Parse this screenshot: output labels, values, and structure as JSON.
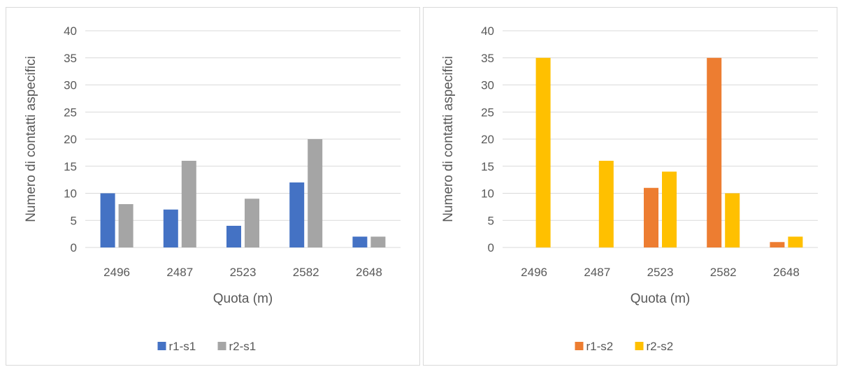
{
  "chart_data": [
    {
      "type": "bar",
      "categories": [
        "2496",
        "2487",
        "2523",
        "2582",
        "2648"
      ],
      "series": [
        {
          "name": "r1-s1",
          "values": [
            10,
            7,
            4,
            12,
            2
          ],
          "color": "#4472c4"
        },
        {
          "name": "r2-s1",
          "values": [
            8,
            16,
            9,
            20,
            2
          ],
          "color": "#a5a5a5"
        }
      ],
      "xlabel": "Quota (m)",
      "ylabel": "Numero di contatti aspecifici",
      "ylim": [
        0,
        40
      ],
      "yticks": [
        "0",
        "5",
        "10",
        "15",
        "20",
        "25",
        "30",
        "35",
        "40"
      ],
      "grid": true,
      "legend": "bottom"
    },
    {
      "type": "bar",
      "categories": [
        "2496",
        "2487",
        "2523",
        "2582",
        "2648"
      ],
      "series": [
        {
          "name": "r1-s2",
          "values": [
            0,
            0,
            11,
            35,
            1
          ],
          "color": "#ed7d31"
        },
        {
          "name": "r2-s2",
          "values": [
            35,
            16,
            14,
            10,
            2
          ],
          "color": "#ffc000"
        }
      ],
      "xlabel": "Quota (m)",
      "ylabel": "Numero di contatti aspecifici",
      "ylim": [
        0,
        40
      ],
      "yticks": [
        "0",
        "5",
        "10",
        "15",
        "20",
        "25",
        "30",
        "35",
        "40"
      ],
      "grid": true,
      "legend": "bottom"
    }
  ]
}
